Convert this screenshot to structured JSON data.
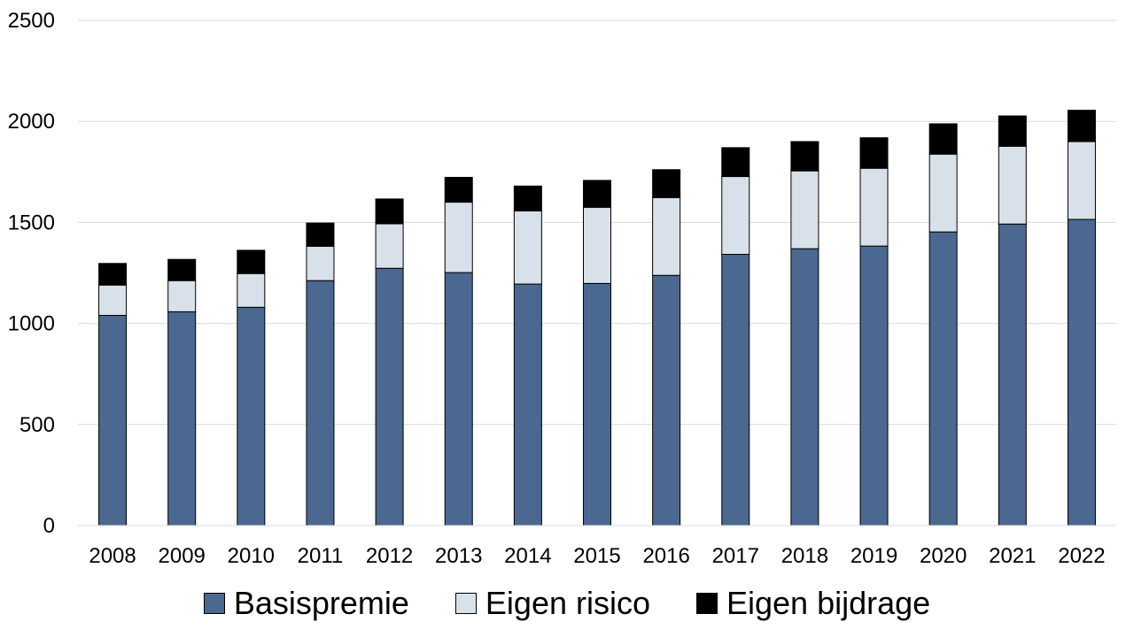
{
  "chart_data": {
    "type": "bar",
    "stacked": true,
    "title": "",
    "xlabel": "",
    "ylabel": "",
    "ylim": [
      0,
      2500
    ],
    "yticks": [
      0,
      500,
      1000,
      1500,
      2000,
      2500
    ],
    "grid": true,
    "legend_position": "bottom",
    "categories": [
      "2008",
      "2009",
      "2010",
      "2011",
      "2012",
      "2013",
      "2014",
      "2015",
      "2016",
      "2017",
      "2018",
      "2019",
      "2020",
      "2021",
      "2022"
    ],
    "series": [
      {
        "name": "Basispremie",
        "color": "#4a6890",
        "values": [
          1040,
          1058,
          1080,
          1212,
          1273,
          1252,
          1195,
          1198,
          1238,
          1342,
          1370,
          1383,
          1453,
          1492,
          1515
        ]
      },
      {
        "name": "Eigen risico",
        "color": "#d8e1ea",
        "values": [
          150,
          154,
          167,
          170,
          220,
          348,
          362,
          377,
          385,
          385,
          385,
          385,
          385,
          385,
          385
        ]
      },
      {
        "name": "Eigen bijdrage",
        "color": "#000000",
        "values": [
          107,
          105,
          115,
          115,
          123,
          123,
          123,
          133,
          138,
          143,
          145,
          151,
          150,
          150,
          155
        ]
      }
    ]
  }
}
